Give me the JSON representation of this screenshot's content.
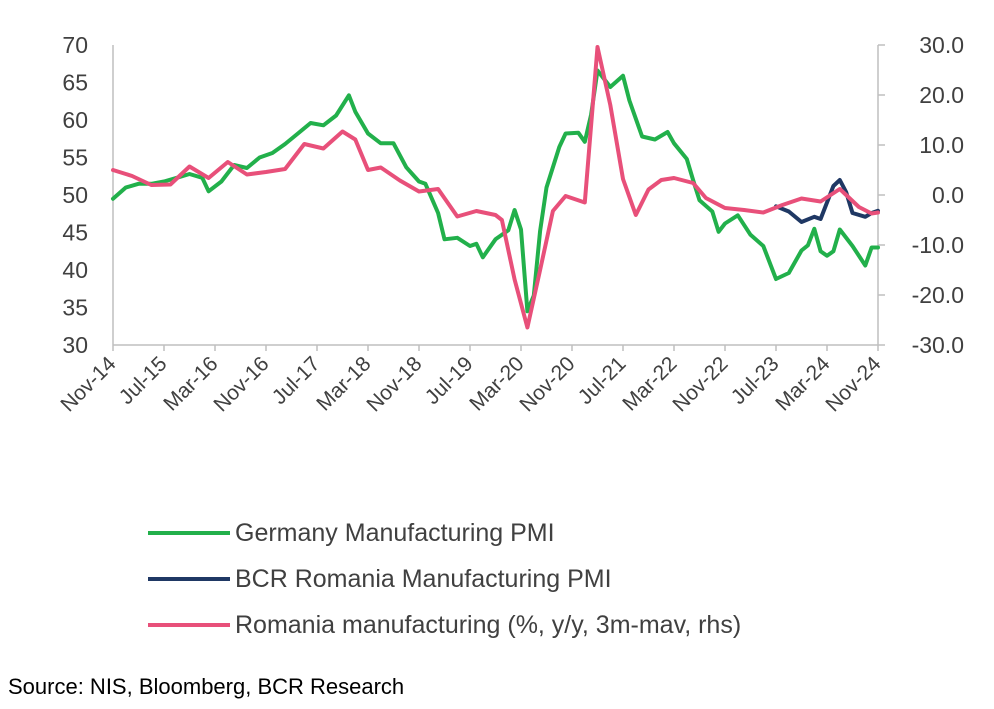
{
  "chart_data": {
    "type": "line",
    "x_ticks": [
      "Nov-14",
      "Jul-15",
      "Mar-16",
      "Nov-16",
      "Jul-17",
      "Mar-18",
      "Nov-18",
      "Jul-19",
      "Mar-20",
      "Nov-20",
      "Jul-21",
      "Mar-22",
      "Nov-22",
      "Jul-23",
      "Mar-24",
      "Nov-24"
    ],
    "x_range": [
      "Nov-14",
      "Nov-24"
    ],
    "y_left": {
      "range": [
        30,
        70
      ],
      "ticks": [
        "70",
        "65",
        "60",
        "55",
        "50",
        "45",
        "40",
        "35",
        "30"
      ]
    },
    "y_right": {
      "range": [
        -30,
        30
      ],
      "ticks": [
        "30.0",
        "20.0",
        "10.0",
        "0.0",
        "-10.0",
        "-20.0",
        "-30.0"
      ]
    },
    "grid": false,
    "legend_position": "bottom",
    "series": [
      {
        "name": "Germany Manufacturing PMI",
        "axis": "left",
        "color": "#22B04B",
        "points": [
          [
            "Nov-14",
            49.5
          ],
          [
            "Jan-15",
            51.0
          ],
          [
            "Mar-15",
            51.5
          ],
          [
            "May-15",
            51.5
          ],
          [
            "Jul-15",
            51.8
          ],
          [
            "Sep-15",
            52.3
          ],
          [
            "Nov-15",
            52.8
          ],
          [
            "Jan-16",
            52.3
          ],
          [
            "Feb-16",
            50.5
          ],
          [
            "Apr-16",
            51.8
          ],
          [
            "Jun-16",
            54.0
          ],
          [
            "Aug-16",
            53.6
          ],
          [
            "Oct-16",
            55.0
          ],
          [
            "Dec-16",
            55.6
          ],
          [
            "Feb-17",
            56.8
          ],
          [
            "Apr-17",
            58.2
          ],
          [
            "Jun-17",
            59.6
          ],
          [
            "Aug-17",
            59.3
          ],
          [
            "Oct-17",
            60.6
          ],
          [
            "Dec-17",
            63.3
          ],
          [
            "Jan-18",
            61.1
          ],
          [
            "Mar-18",
            58.2
          ],
          [
            "May-18",
            56.9
          ],
          [
            "Jul-18",
            56.9
          ],
          [
            "Sep-18",
            53.7
          ],
          [
            "Nov-18",
            51.8
          ],
          [
            "Dec-18",
            51.5
          ],
          [
            "Feb-19",
            47.6
          ],
          [
            "Mar-19",
            44.1
          ],
          [
            "May-19",
            44.3
          ],
          [
            "Jul-19",
            43.2
          ],
          [
            "Aug-19",
            43.5
          ],
          [
            "Sep-19",
            41.7
          ],
          [
            "Nov-19",
            44.1
          ],
          [
            "Jan-20",
            45.3
          ],
          [
            "Feb-20",
            48.0
          ],
          [
            "Mar-20",
            45.4
          ],
          [
            "Apr-20",
            34.5
          ],
          [
            "May-20",
            36.6
          ],
          [
            "Jun-20",
            45.2
          ],
          [
            "Jul-20",
            51.0
          ],
          [
            "Sep-20",
            56.4
          ],
          [
            "Oct-20",
            58.2
          ],
          [
            "Dec-20",
            58.3
          ],
          [
            "Jan-21",
            57.1
          ],
          [
            "Feb-21",
            60.7
          ],
          [
            "Mar-21",
            66.6
          ],
          [
            "May-21",
            64.4
          ],
          [
            "Jul-21",
            65.9
          ],
          [
            "Aug-21",
            62.6
          ],
          [
            "Oct-21",
            57.8
          ],
          [
            "Dec-21",
            57.4
          ],
          [
            "Feb-22",
            58.4
          ],
          [
            "Mar-22",
            56.9
          ],
          [
            "May-22",
            54.8
          ],
          [
            "Jun-22",
            52.0
          ],
          [
            "Jul-22",
            49.3
          ],
          [
            "Sep-22",
            47.8
          ],
          [
            "Oct-22",
            45.1
          ],
          [
            "Nov-22",
            46.2
          ],
          [
            "Jan-23",
            47.3
          ],
          [
            "Mar-23",
            44.7
          ],
          [
            "May-23",
            43.2
          ],
          [
            "Jul-23",
            38.8
          ],
          [
            "Sep-23",
            39.6
          ],
          [
            "Nov-23",
            42.6
          ],
          [
            "Dec-23",
            43.3
          ],
          [
            "Jan-24",
            45.5
          ],
          [
            "Feb-24",
            42.5
          ],
          [
            "Mar-24",
            41.9
          ],
          [
            "Apr-24",
            42.5
          ],
          [
            "May-24",
            45.4
          ],
          [
            "Jul-24",
            43.2
          ],
          [
            "Sep-24",
            40.6
          ],
          [
            "Oct-24",
            43.0
          ],
          [
            "Nov-24",
            43.0
          ]
        ]
      },
      {
        "name": "BCR Romania Manufacturing PMI",
        "axis": "left",
        "color": "#1F3864",
        "points": [
          [
            "Jul-23",
            48.5
          ],
          [
            "Sep-23",
            47.8
          ],
          [
            "Nov-23",
            46.4
          ],
          [
            "Jan-24",
            47.1
          ],
          [
            "Feb-24",
            46.8
          ],
          [
            "Apr-24",
            51.2
          ],
          [
            "May-24",
            52.0
          ],
          [
            "Jun-24",
            50.4
          ],
          [
            "Jul-24",
            47.6
          ],
          [
            "Sep-24",
            47.1
          ],
          [
            "Oct-24",
            47.6
          ],
          [
            "Nov-24",
            47.9
          ]
        ]
      },
      {
        "name": "Romania manufacturing (%, y/y, 3m-mav, rhs)",
        "axis": "right",
        "color": "#E8507A",
        "points": [
          [
            "Nov-14",
            5.0
          ],
          [
            "Feb-15",
            3.8
          ],
          [
            "May-15",
            2.0
          ],
          [
            "Aug-15",
            2.1
          ],
          [
            "Nov-15",
            5.7
          ],
          [
            "Feb-16",
            3.4
          ],
          [
            "May-16",
            6.6
          ],
          [
            "Aug-16",
            4.1
          ],
          [
            "Nov-16",
            4.6
          ],
          [
            "Feb-17",
            5.2
          ],
          [
            "May-17",
            10.2
          ],
          [
            "Aug-17",
            9.3
          ],
          [
            "Nov-17",
            12.7
          ],
          [
            "Jan-18",
            11.1
          ],
          [
            "Mar-18",
            5.0
          ],
          [
            "May-18",
            5.5
          ],
          [
            "Aug-18",
            2.9
          ],
          [
            "Nov-18",
            0.7
          ],
          [
            "Feb-19",
            1.2
          ],
          [
            "May-19",
            -4.3
          ],
          [
            "Aug-19",
            -3.2
          ],
          [
            "Nov-19",
            -4.0
          ],
          [
            "Dec-19",
            -5.0
          ],
          [
            "Feb-20",
            -16.9
          ],
          [
            "Apr-20",
            -26.5
          ],
          [
            "Jun-20",
            -15.0
          ],
          [
            "Aug-20",
            -3.2
          ],
          [
            "Oct-20",
            -0.2
          ],
          [
            "Jan-21",
            -1.5
          ],
          [
            "Mar-21",
            29.6
          ],
          [
            "May-21",
            18.0
          ],
          [
            "Jul-21",
            3.2
          ],
          [
            "Sep-21",
            -4.0
          ],
          [
            "Nov-21",
            1.1
          ],
          [
            "Jan-22",
            3.0
          ],
          [
            "Mar-22",
            3.4
          ],
          [
            "Jun-22",
            2.4
          ],
          [
            "Aug-22",
            -0.6
          ],
          [
            "Nov-22",
            -2.6
          ],
          [
            "Feb-23",
            -3.0
          ],
          [
            "May-23",
            -3.5
          ],
          [
            "Aug-23",
            -2.0
          ],
          [
            "Nov-23",
            -0.7
          ],
          [
            "Feb-24",
            -1.3
          ],
          [
            "May-24",
            1.2
          ],
          [
            "Aug-24",
            -2.4
          ],
          [
            "Oct-24",
            -3.7
          ],
          [
            "Nov-24",
            -3.5
          ]
        ]
      }
    ]
  },
  "legend": {
    "items": [
      {
        "label": "Germany Manufacturing PMI",
        "color": "#22B04B"
      },
      {
        "label": "BCR Romania Manufacturing PMI",
        "color": "#1F3864"
      },
      {
        "label": "Romania manufacturing (%, y/y, 3m-mav, rhs)",
        "color": "#E8507A"
      }
    ]
  },
  "source": "Source: NIS, Bloomberg, BCR Research"
}
